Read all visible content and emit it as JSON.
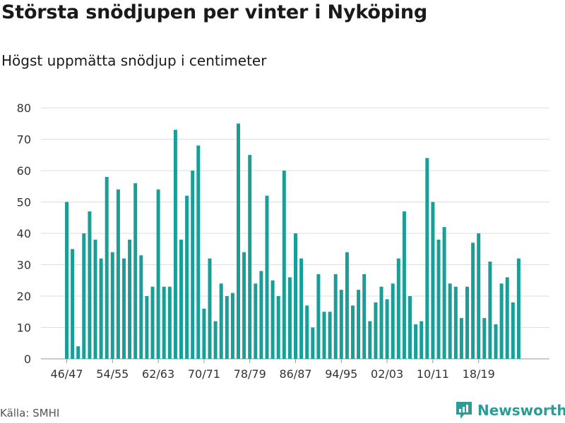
{
  "title": "Största snödjupen per vinter i Nyköping",
  "subtitle": "Högst uppmätta snödjup i centimeter",
  "source": "Källa: SMHI",
  "brand": "Newsworthy",
  "colors": {
    "bar": "#1a9e98",
    "grid": "#dddddd",
    "brand": "#2e9c96"
  },
  "chart_data": {
    "type": "bar",
    "title": "Största snödjupen per vinter i Nyköping",
    "subtitle": "Högst uppmätta snödjup i centimeter",
    "xlabel": "",
    "ylabel": "",
    "ylim": [
      0,
      80
    ],
    "yticks": [
      0,
      10,
      20,
      30,
      40,
      50,
      60,
      70,
      80
    ],
    "grid": true,
    "categories": [
      "46/47",
      "47/48",
      "48/49",
      "49/50",
      "50/51",
      "51/52",
      "52/53",
      "53/54",
      "54/55",
      "55/56",
      "56/57",
      "57/58",
      "58/59",
      "59/60",
      "60/61",
      "61/62",
      "62/63",
      "63/64",
      "64/65",
      "65/66",
      "66/67",
      "67/68",
      "68/69",
      "69/70",
      "70/71",
      "71/72",
      "72/73",
      "73/74",
      "74/75",
      "75/76",
      "76/77",
      "77/78",
      "78/79",
      "79/80",
      "80/81",
      "81/82",
      "82/83",
      "83/84",
      "84/85",
      "85/86",
      "86/87",
      "87/88",
      "88/89",
      "89/90",
      "90/91",
      "91/92",
      "92/93",
      "93/94",
      "94/95",
      "95/96",
      "96/97",
      "97/98",
      "98/99",
      "99/00",
      "00/01",
      "01/02",
      "02/03",
      "03/04",
      "04/05",
      "05/06",
      "06/07",
      "07/08",
      "08/09",
      "09/10",
      "10/11",
      "11/12",
      "12/13",
      "13/14",
      "14/15",
      "15/16",
      "16/17",
      "17/18",
      "18/19",
      "19/20",
      "20/21",
      "21/22",
      "22/23",
      "23/24",
      "24/25",
      "25/26"
    ],
    "values": [
      50,
      35,
      4,
      40,
      47,
      38,
      32,
      58,
      34,
      54,
      32,
      38,
      56,
      33,
      20,
      23,
      54,
      23,
      23,
      73,
      38,
      52,
      60,
      68,
      16,
      32,
      12,
      24,
      20,
      21,
      75,
      34,
      65,
      24,
      28,
      52,
      25,
      20,
      60,
      26,
      40,
      32,
      17,
      10,
      27,
      15,
      15,
      27,
      22,
      34,
      17,
      22,
      27,
      12,
      18,
      23,
      19,
      24,
      32,
      47,
      20,
      11,
      12,
      64,
      50,
      38,
      42,
      24,
      23,
      13,
      23,
      37,
      40,
      13,
      31,
      11,
      24,
      26,
      18,
      32
    ],
    "xtick_labels": [
      "46/47",
      "54/55",
      "62/63",
      "70/71",
      "78/79",
      "86/87",
      "94/95",
      "02/03",
      "10/11",
      "18/19"
    ]
  }
}
